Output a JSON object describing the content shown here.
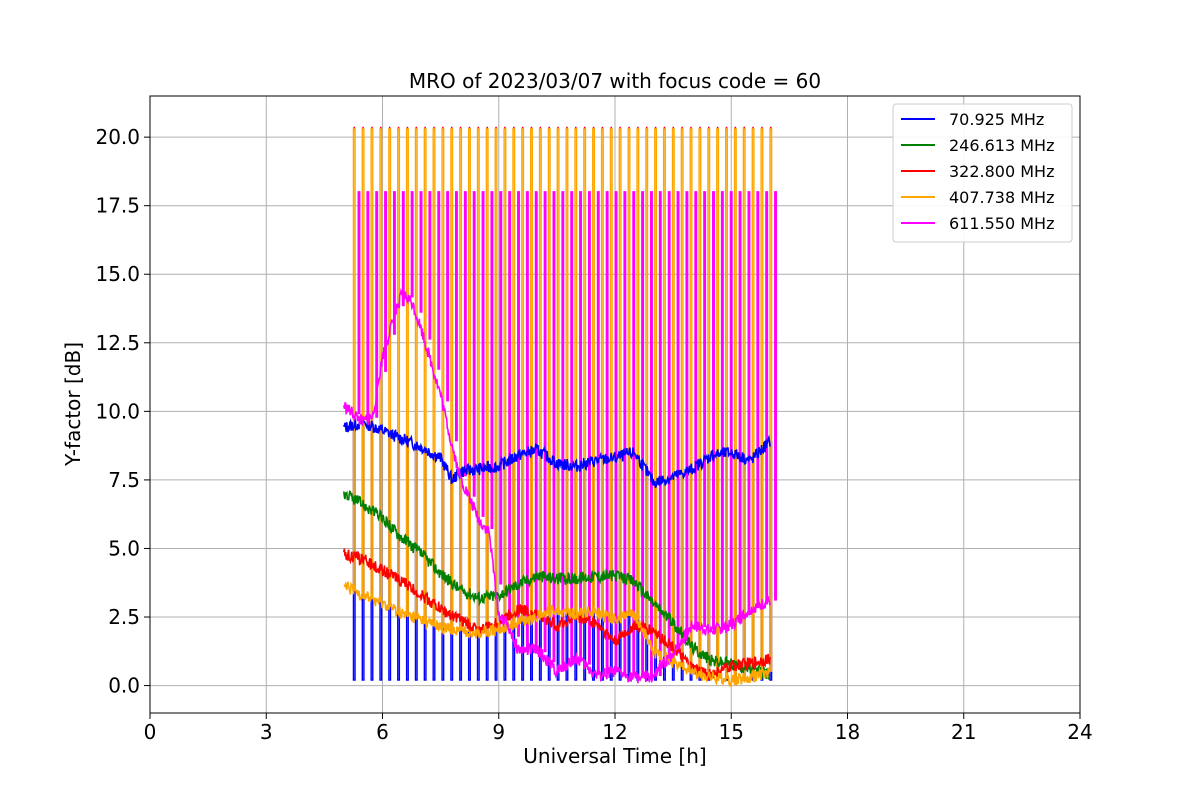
{
  "chart_data": {
    "type": "line",
    "title": "MRO of 2023/03/07 with focus code = 60",
    "xlabel": "Universal Time [h]",
    "ylabel": "Y-factor [dB]",
    "xlim": [
      0,
      24
    ],
    "ylim": [
      -1.0,
      21.5
    ],
    "xticks": [
      0,
      3,
      6,
      9,
      12,
      15,
      18,
      21,
      24
    ],
    "xtick_labels": [
      "0",
      "3",
      "6",
      "9",
      "12",
      "15",
      "18",
      "21",
      "24"
    ],
    "yticks": [
      0,
      2.5,
      5,
      7.5,
      10,
      12.5,
      15,
      17.5,
      20
    ],
    "ytick_labels": [
      "0.0",
      "2.5",
      "5.0",
      "7.5",
      "10.0",
      "12.5",
      "15.0",
      "17.5",
      "20.0"
    ],
    "grid": true,
    "legend_position": "top-right",
    "calibration_pulses": {
      "start_time": 5.25,
      "end_time": 16.0,
      "count": 48,
      "top_values": [
        20.3,
        18.0
      ],
      "low_value": 0.2
    },
    "series": [
      {
        "name": " 70.925 MHz",
        "color": "#0000ff",
        "x": [
          5.0,
          5.5,
          6.0,
          6.5,
          7.0,
          7.5,
          7.8,
          8.0,
          8.5,
          9.0,
          9.5,
          10.0,
          10.5,
          11.0,
          11.5,
          12.0,
          12.5,
          13.0,
          13.5,
          14.0,
          14.5,
          15.0,
          15.5,
          16.0
        ],
        "y": [
          9.4,
          9.6,
          9.3,
          9.0,
          8.7,
          8.3,
          7.5,
          7.8,
          7.9,
          8.0,
          8.4,
          8.6,
          8.1,
          8.0,
          8.2,
          8.3,
          8.5,
          7.4,
          7.6,
          7.9,
          8.4,
          8.5,
          8.2,
          8.9
        ]
      },
      {
        "name": "246.613 MHz",
        "color": "#008000",
        "x": [
          5.0,
          5.5,
          6.0,
          6.5,
          7.0,
          7.5,
          8.0,
          8.5,
          9.0,
          9.5,
          10.0,
          10.5,
          11.0,
          11.5,
          12.0,
          12.5,
          13.0,
          13.5,
          14.0,
          14.5,
          15.0,
          15.5,
          16.0
        ],
        "y": [
          7.0,
          6.6,
          6.1,
          5.4,
          4.8,
          4.1,
          3.5,
          3.2,
          3.3,
          3.7,
          4.0,
          3.9,
          3.9,
          4.0,
          4.0,
          3.8,
          3.0,
          2.3,
          1.4,
          0.9,
          0.8,
          0.6,
          0.4
        ]
      },
      {
        "name": "322.800 MHz",
        "color": "#ff0000",
        "x": [
          5.0,
          5.5,
          6.0,
          6.5,
          7.0,
          7.5,
          8.0,
          8.5,
          9.0,
          9.5,
          10.0,
          10.5,
          11.0,
          11.5,
          12.0,
          12.5,
          13.0,
          13.5,
          14.0,
          14.5,
          15.0,
          15.5,
          16.0
        ],
        "y": [
          4.8,
          4.6,
          4.2,
          3.8,
          3.3,
          2.8,
          2.4,
          2.0,
          2.3,
          2.8,
          2.6,
          2.2,
          2.5,
          2.3,
          1.6,
          2.2,
          2.0,
          1.4,
          0.6,
          0.4,
          0.7,
          0.8,
          1.0
        ]
      },
      {
        "name": "407.738 MHz",
        "color": "#ffa500",
        "x": [
          5.0,
          5.5,
          6.0,
          6.5,
          7.0,
          7.5,
          8.0,
          8.5,
          9.0,
          9.5,
          10.0,
          10.5,
          11.0,
          11.5,
          12.0,
          12.5,
          13.0,
          13.5,
          14.0,
          14.5,
          15.0,
          15.5,
          16.0
        ],
        "y": [
          3.6,
          3.3,
          3.0,
          2.6,
          2.4,
          2.1,
          2.0,
          1.9,
          2.1,
          2.3,
          2.5,
          2.8,
          2.6,
          2.7,
          2.4,
          2.6,
          1.2,
          0.9,
          0.5,
          0.3,
          0.2,
          0.3,
          0.5
        ]
      },
      {
        "name": "611.550 MHz",
        "color": "#ff00ff",
        "x": [
          5.0,
          5.25,
          5.5,
          5.75,
          6.0,
          6.25,
          6.5,
          6.75,
          7.0,
          7.25,
          7.5,
          7.75,
          8.0,
          8.25,
          8.5,
          8.75,
          9.0,
          9.25,
          9.5,
          10.0,
          10.5,
          11.0,
          11.5,
          12.0,
          12.5,
          13.0,
          13.5,
          14.0,
          14.5,
          15.0,
          15.5,
          16.0
        ],
        "y": [
          10.2,
          9.9,
          9.6,
          9.8,
          12.0,
          13.2,
          14.3,
          14.0,
          13.0,
          11.8,
          10.6,
          9.0,
          7.6,
          6.8,
          6.0,
          5.6,
          2.6,
          2.2,
          1.3,
          1.3,
          0.5,
          1.0,
          0.4,
          0.5,
          0.3,
          0.3,
          1.2,
          2.2,
          2.0,
          2.2,
          2.8,
          3.1
        ]
      }
    ]
  }
}
